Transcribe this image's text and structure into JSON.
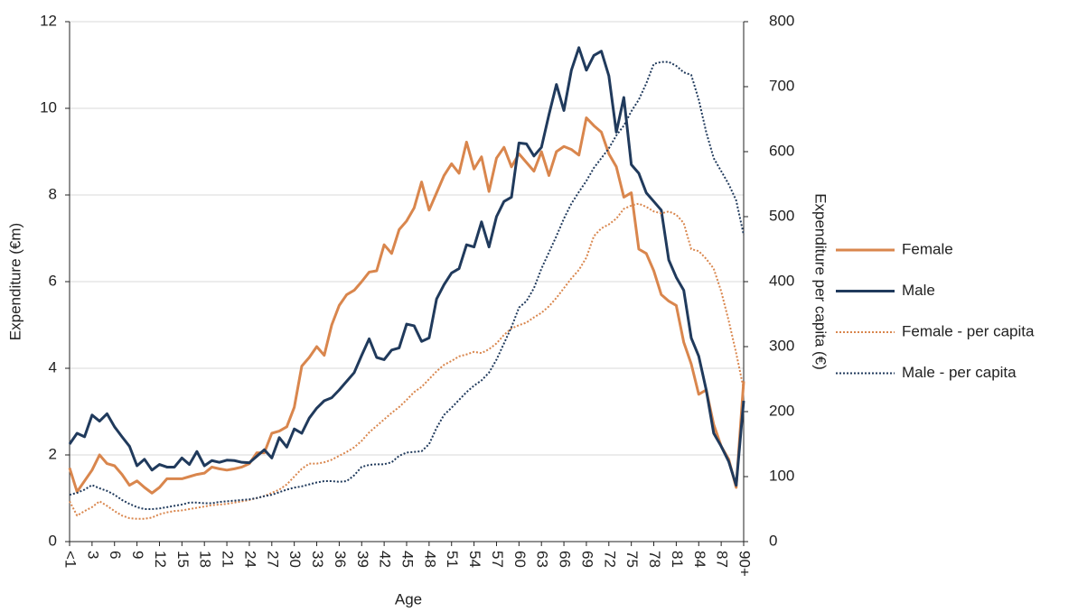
{
  "chart_data": {
    "type": "line",
    "x_label": "Age",
    "y_label": "Expenditure (€m)",
    "y2_label": "Expenditure per capita (€)",
    "categories": [
      "<1",
      null,
      null,
      "3",
      null,
      null,
      "6",
      null,
      null,
      "9",
      null,
      null,
      "12",
      null,
      null,
      "15",
      null,
      null,
      "18",
      null,
      null,
      "21",
      null,
      null,
      "24",
      null,
      null,
      "27",
      null,
      null,
      "30",
      null,
      null,
      "33",
      null,
      null,
      "36",
      null,
      null,
      "39",
      null,
      null,
      "42",
      null,
      null,
      "45",
      null,
      null,
      "48",
      null,
      null,
      "51",
      null,
      null,
      "54",
      null,
      null,
      "57",
      null,
      null,
      "60",
      null,
      null,
      "63",
      null,
      null,
      "66",
      null,
      null,
      "69",
      null,
      null,
      "72",
      null,
      null,
      "75",
      null,
      null,
      "78",
      null,
      null,
      "81",
      null,
      null,
      "84",
      null,
      null,
      "87",
      null,
      null,
      "90+"
    ],
    "ylim": [
      0,
      12
    ],
    "yticks": [
      0,
      2,
      4,
      6,
      8,
      10,
      12
    ],
    "y2lim": [
      0,
      800
    ],
    "y2ticks": [
      0,
      100,
      200,
      300,
      400,
      500,
      600,
      700,
      800
    ],
    "grid": true,
    "legend": "right",
    "series": [
      {
        "name": "Female",
        "color": "#d9864d",
        "style": "solid",
        "values": [
          1.7,
          1.15,
          1.4,
          1.65,
          2.0,
          1.8,
          1.75,
          1.55,
          1.3,
          1.4,
          1.25,
          1.12,
          1.25,
          1.45,
          1.45,
          1.45,
          1.5,
          1.55,
          1.58,
          1.72,
          1.68,
          1.65,
          1.68,
          1.72,
          1.8,
          2.05,
          2.05,
          2.5,
          2.55,
          2.65,
          3.1,
          4.05,
          4.25,
          4.5,
          4.3,
          5.0,
          5.45,
          5.7,
          5.8,
          6.0,
          6.22,
          6.25,
          6.85,
          6.65,
          7.2,
          7.4,
          7.7,
          8.3,
          7.65,
          8.05,
          8.45,
          8.72,
          8.5,
          9.22,
          8.6,
          8.88,
          8.08,
          8.85,
          9.1,
          8.65,
          8.95,
          8.75,
          8.55,
          9.0,
          8.45,
          9.0,
          9.12,
          9.05,
          8.92,
          9.78,
          9.6,
          9.45,
          8.95,
          8.65,
          7.95,
          8.05,
          6.75,
          6.65,
          6.25,
          5.7,
          5.55,
          5.45,
          4.6,
          4.1,
          3.4,
          3.5,
          2.7,
          2.2,
          1.9,
          1.25,
          3.7
        ]
      },
      {
        "name": "Male",
        "color": "#203a5c",
        "style": "solid",
        "values": [
          2.25,
          2.5,
          2.42,
          2.92,
          2.78,
          2.95,
          2.65,
          2.42,
          2.2,
          1.75,
          1.9,
          1.65,
          1.78,
          1.72,
          1.72,
          1.93,
          1.78,
          2.08,
          1.75,
          1.87,
          1.83,
          1.88,
          1.87,
          1.83,
          1.82,
          1.97,
          2.12,
          1.93,
          2.4,
          2.18,
          2.6,
          2.5,
          2.85,
          3.08,
          3.25,
          3.32,
          3.5,
          3.7,
          3.9,
          4.3,
          4.68,
          4.25,
          4.2,
          4.42,
          4.47,
          5.02,
          4.98,
          4.62,
          4.7,
          5.6,
          5.93,
          6.2,
          6.3,
          6.85,
          6.8,
          7.38,
          6.8,
          7.5,
          7.85,
          7.95,
          9.2,
          9.18,
          8.9,
          9.1,
          9.85,
          10.55,
          9.95,
          10.88,
          11.4,
          10.88,
          11.22,
          11.32,
          10.75,
          9.45,
          10.25,
          8.7,
          8.5,
          8.05,
          7.85,
          7.65,
          6.5,
          6.1,
          5.8,
          4.7,
          4.28,
          3.5,
          2.5,
          2.2,
          1.85,
          1.3,
          3.25
        ]
      },
      {
        "name": "Female - per capita",
        "color": "#d9864d",
        "style": "dotted",
        "axis": "y2",
        "values": [
          62,
          40,
          47,
          53,
          62,
          55,
          47,
          40,
          36,
          35,
          35,
          37,
          42,
          45,
          47,
          48,
          50,
          52,
          54,
          56,
          57,
          58,
          60,
          62,
          64,
          67,
          70,
          75,
          80,
          88,
          100,
          112,
          120,
          120,
          122,
          126,
          132,
          138,
          145,
          155,
          168,
          178,
          188,
          198,
          207,
          218,
          230,
          238,
          250,
          262,
          272,
          278,
          285,
          288,
          292,
          290,
          296,
          305,
          318,
          328,
          333,
          337,
          345,
          352,
          362,
          375,
          390,
          405,
          418,
          437,
          470,
          482,
          488,
          497,
          512,
          517,
          520,
          515,
          508,
          505,
          508,
          503,
          490,
          450,
          447,
          435,
          420,
          385,
          340,
          290,
          235
        ]
      },
      {
        "name": "Male - per capita",
        "color": "#203a5c",
        "style": "dotted",
        "axis": "y2",
        "values": [
          72,
          75,
          80,
          87,
          82,
          78,
          72,
          64,
          58,
          53,
          50,
          50,
          51,
          53,
          55,
          57,
          60,
          60,
          59,
          59,
          61,
          62,
          63,
          64,
          65,
          67,
          70,
          72,
          76,
          80,
          83,
          85,
          88,
          91,
          93,
          93,
          92,
          93,
          102,
          115,
          118,
          119,
          119,
          122,
          132,
          137,
          138,
          139,
          150,
          175,
          195,
          206,
          218,
          230,
          240,
          248,
          260,
          280,
          305,
          330,
          360,
          370,
          390,
          420,
          445,
          470,
          497,
          520,
          538,
          555,
          575,
          590,
          605,
          625,
          640,
          662,
          680,
          705,
          735,
          738,
          738,
          732,
          722,
          718,
          680,
          630,
          590,
          570,
          550,
          525,
          472
        ]
      }
    ]
  }
}
